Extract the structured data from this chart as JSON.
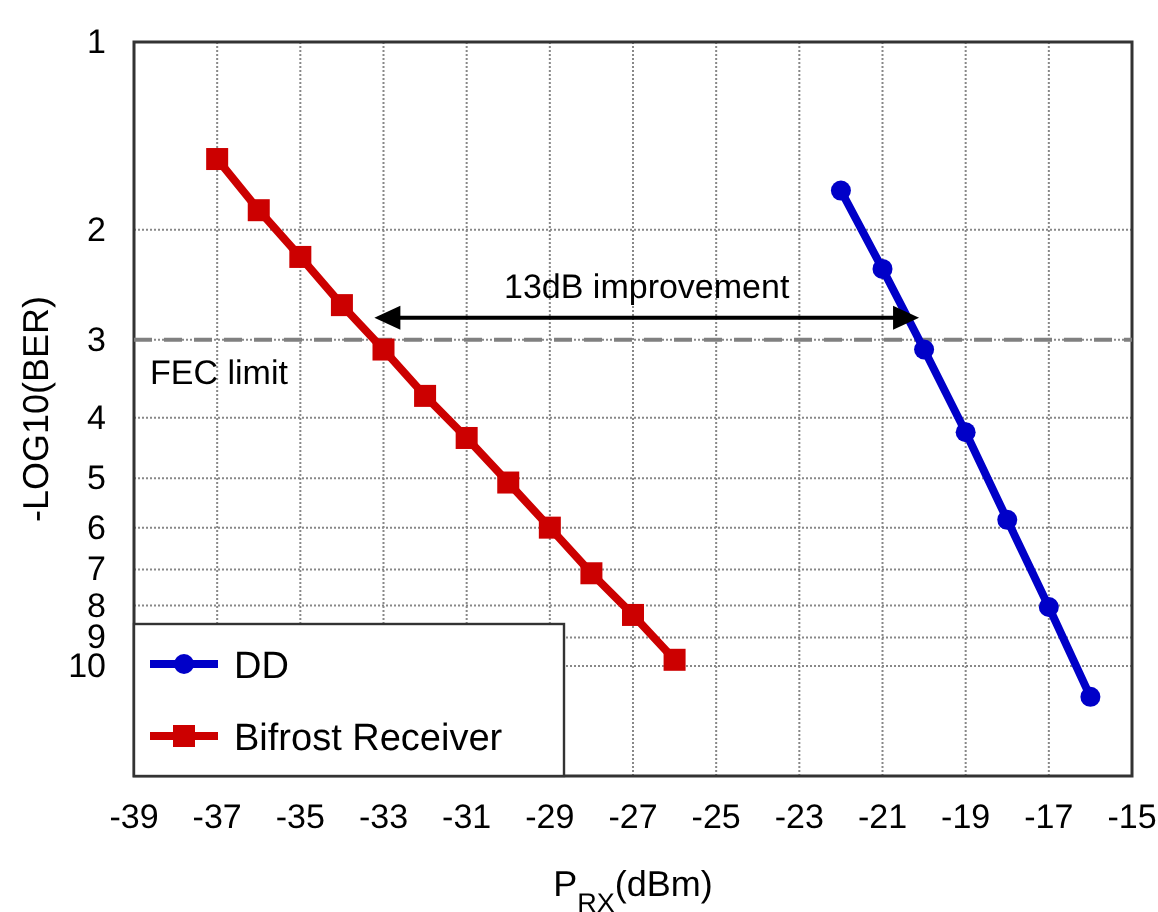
{
  "chart_data": {
    "type": "line",
    "xlabel": "P$_{RX}$(dBm)",
    "ylabel": "-LOG10(BER)",
    "xlim": [
      -39,
      -15
    ],
    "xticks": [
      -39,
      -37,
      -35,
      -33,
      -31,
      -29,
      -27,
      -25,
      -23,
      -21,
      -19,
      -17,
      -15
    ],
    "ylim": [
      15,
      1
    ],
    "yticks": [
      1,
      2,
      3,
      4,
      5,
      6,
      7,
      8,
      9,
      10
    ],
    "log": "y",
    "grid": true,
    "legend": "bottom left",
    "series": [
      {
        "name": "DD",
        "color": "#0000c8",
        "marker": "circle",
        "x": [
          -22,
          -21,
          -20,
          -19,
          -18,
          -17,
          -16
        ],
        "values": [
          1.73,
          2.31,
          3.11,
          4.22,
          5.83,
          8.04,
          11.2
        ]
      },
      {
        "name": "Bifrost Receiver",
        "color": "#cc0000",
        "marker": "square",
        "x": [
          -37,
          -36,
          -35,
          -34,
          -33,
          -32,
          -31,
          -30,
          -29,
          -28,
          -27,
          -26
        ],
        "values": [
          1.54,
          1.86,
          2.21,
          2.64,
          3.11,
          3.69,
          4.31,
          5.08,
          6.0,
          7.1,
          8.28,
          9.77
        ]
      }
    ],
    "ref_lines": [
      {
        "axis": "y",
        "value": 3,
        "label": "FEC limit",
        "color": "#808080",
        "line_style": "dashed"
      }
    ],
    "annotations": [
      "13dB improvement"
    ]
  }
}
